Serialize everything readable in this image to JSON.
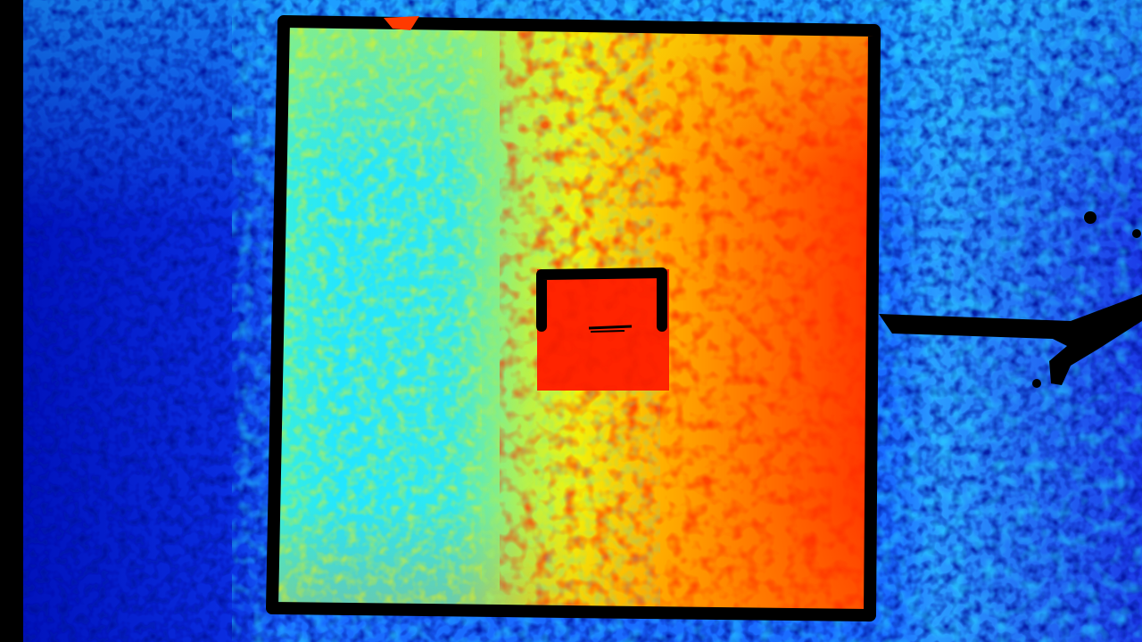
{
  "image": {
    "kind": "false-color heatmap",
    "colormap": "jet",
    "palette": {
      "deep_blue": "#0010b8",
      "blue": "#1a4cff",
      "light_blue": "#2a9bff",
      "cyan": "#16e6ff",
      "yellow": "#f2f20a",
      "orange": "#ff9a00",
      "red": "#ff2a00",
      "outline": "#000000"
    },
    "regions": [
      {
        "name": "background",
        "dominant_color": "deep_blue"
      },
      {
        "name": "panel",
        "dominant_color": "cyan-to-red gradient"
      },
      {
        "name": "hot-spot",
        "dominant_color": "red"
      }
    ]
  }
}
